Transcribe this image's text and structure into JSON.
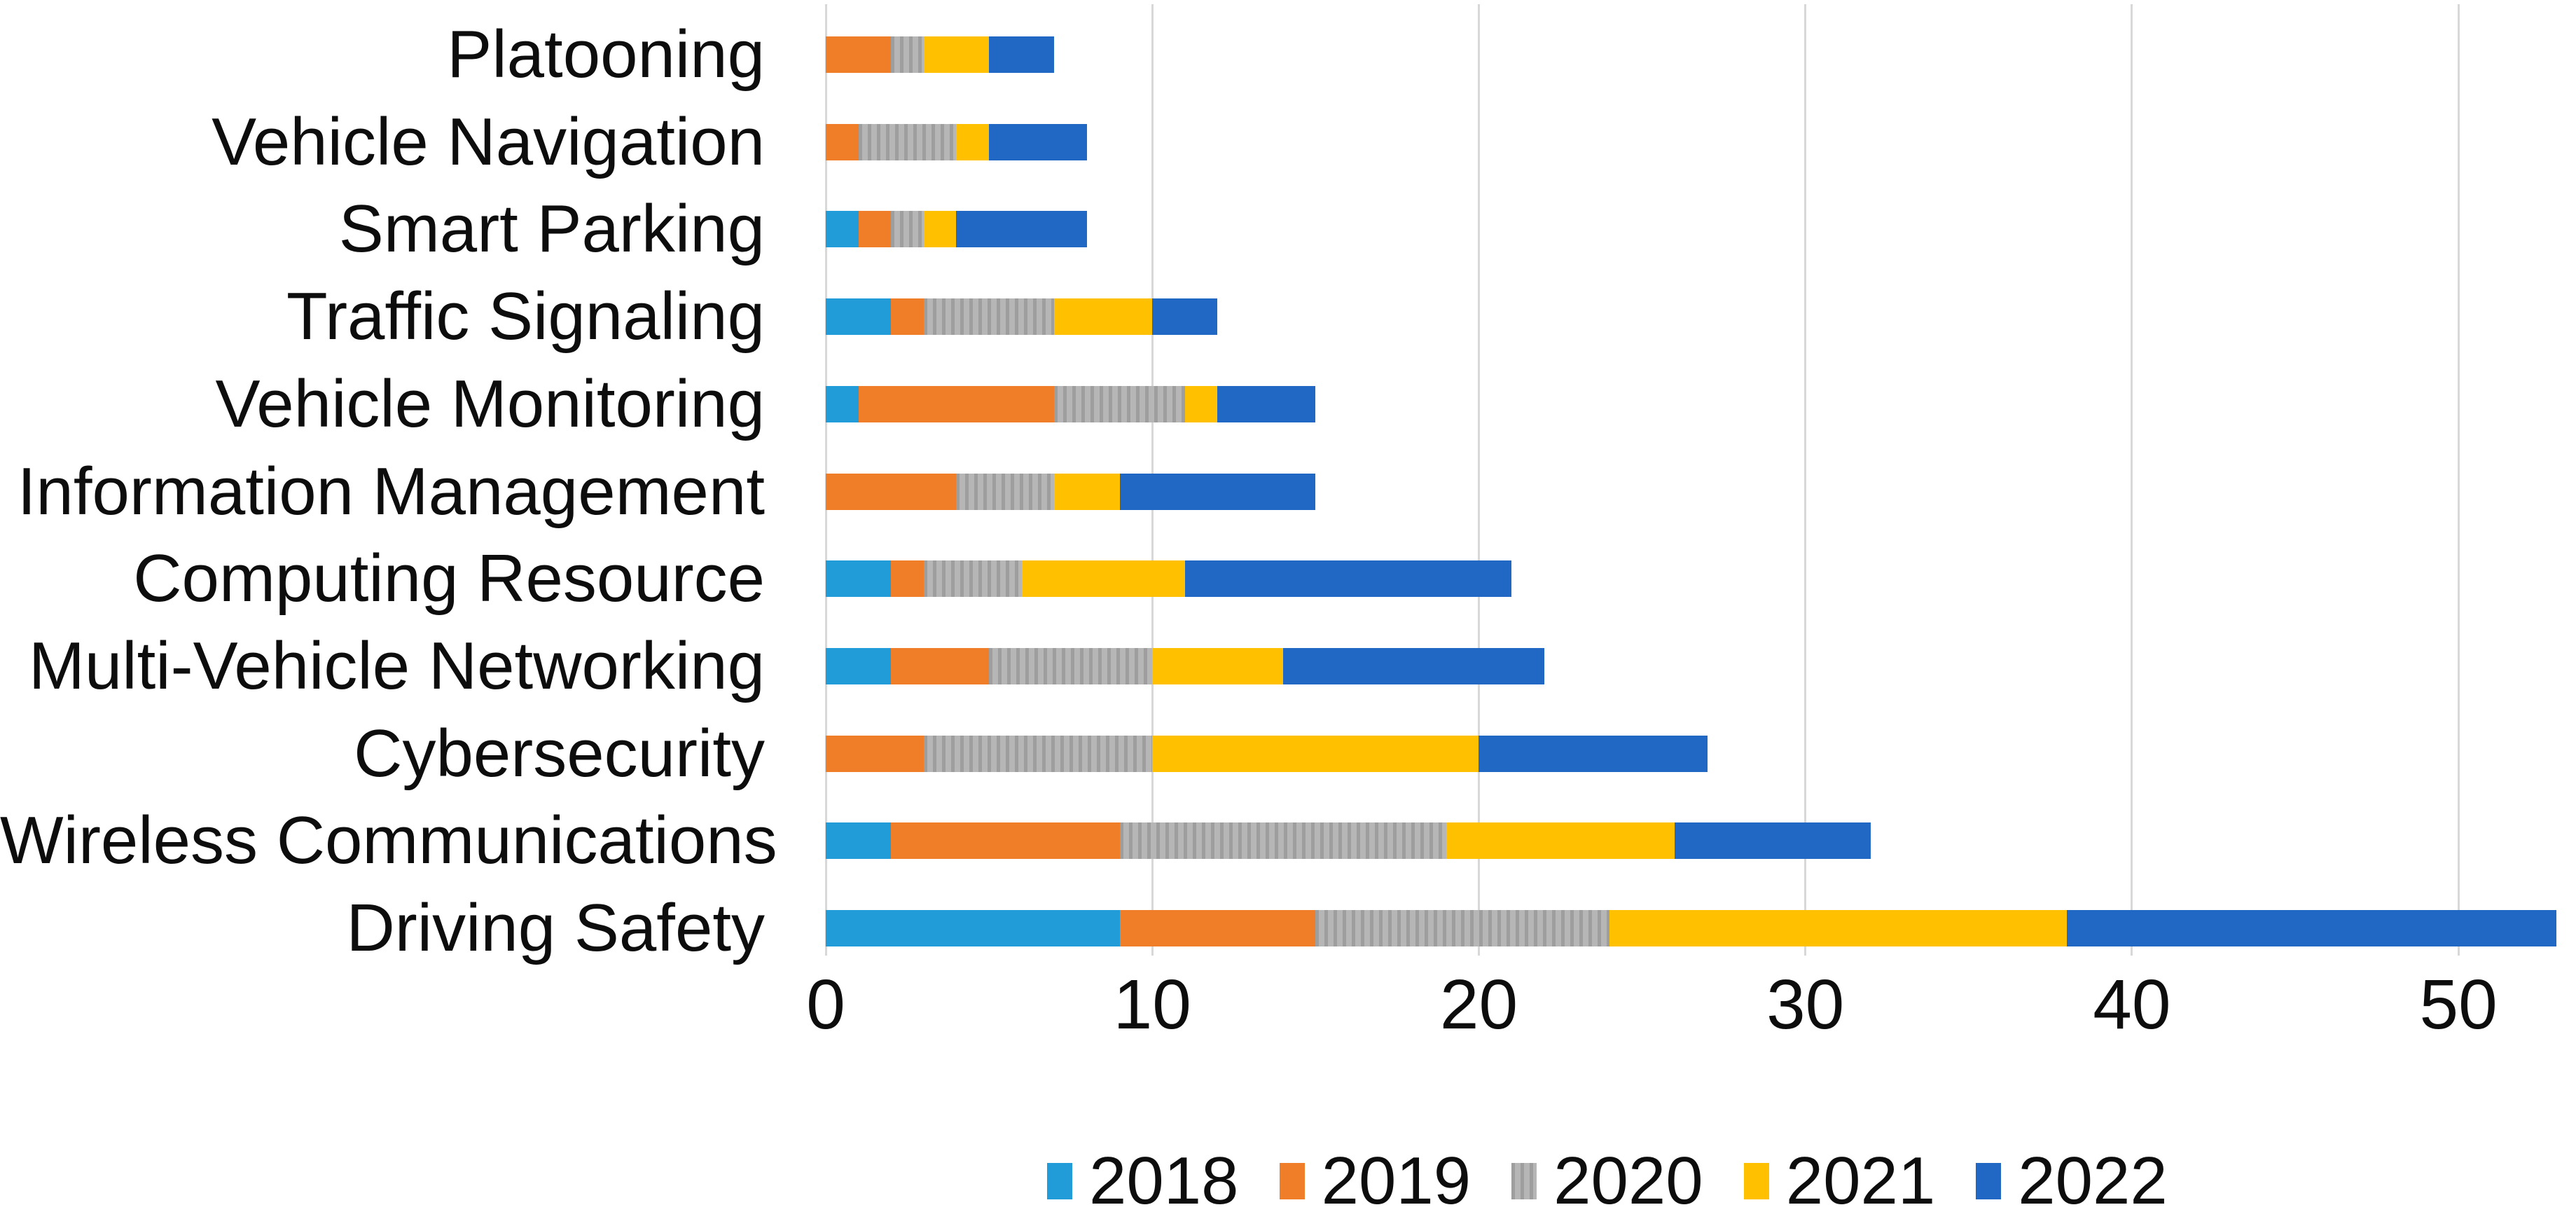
{
  "chart_data": {
    "type": "bar",
    "variant": "horizontal_stacked",
    "title": "",
    "xlabel": "",
    "ylabel": "",
    "grid": true,
    "legend_position": "bottom",
    "x_ticks": [
      "0",
      "10",
      "20",
      "30",
      "40",
      "50"
    ],
    "x_tick_values": [
      0,
      10,
      20,
      30,
      40,
      50
    ],
    "x_max": 53.6,
    "categories": [
      "Platooning",
      "Vehicle Navigation",
      "Smart Parking",
      "Traffic Signaling",
      "Vehicle Monitoring",
      "Information Management",
      "Computing Resource",
      "Multi-Vehicle Networking",
      "Cybersecurity",
      "Wireless Communications",
      "Driving Safety"
    ],
    "series": [
      {
        "name": "2018",
        "color": "#219CD8",
        "pattern": "solid",
        "values": [
          0,
          0,
          1,
          2,
          1,
          0,
          2,
          2,
          0,
          2,
          9
        ]
      },
      {
        "name": "2019",
        "color": "#F07E28",
        "pattern": "solid",
        "values": [
          2,
          1,
          1,
          1,
          6,
          4,
          1,
          3,
          3,
          7,
          6
        ]
      },
      {
        "name": "2020",
        "color": "#B3B3B3",
        "pattern": "vertical-weave",
        "values": [
          1,
          3,
          1,
          4,
          4,
          3,
          3,
          5,
          7,
          10,
          9
        ]
      },
      {
        "name": "2021",
        "color": "#FFC000",
        "pattern": "solid",
        "values": [
          2,
          1,
          1,
          3,
          1,
          2,
          5,
          4,
          10,
          7,
          14
        ]
      },
      {
        "name": "2022",
        "color": "#2068C3",
        "pattern": "solid",
        "values": [
          2,
          3,
          4,
          2,
          3,
          6,
          10,
          8,
          7,
          6,
          15
        ]
      }
    ],
    "totals": [
      7,
      8,
      8,
      12,
      15,
      15,
      21,
      22,
      27,
      32,
      53
    ]
  },
  "colors": {
    "gridline": "#d8d8d8",
    "text": "#0d0d0d",
    "background": "#ffffff",
    "gray_pattern_stripe": "#9e9e9e"
  },
  "layout_note_values_visible_only": true
}
